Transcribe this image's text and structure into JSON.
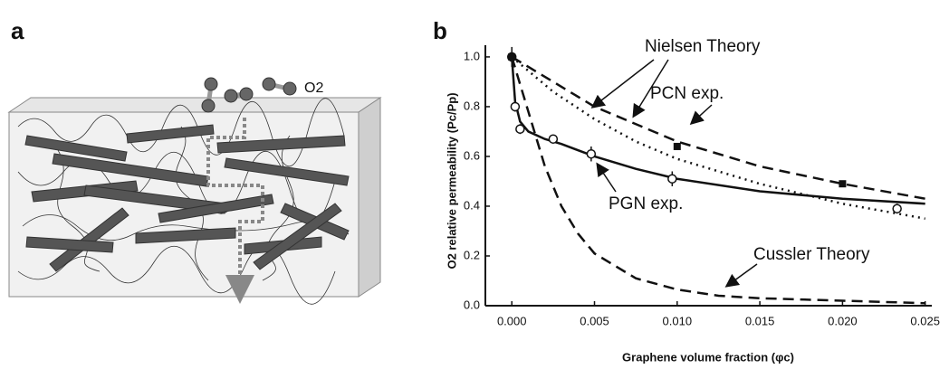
{
  "panels": {
    "a": {
      "label": "a",
      "molecule_label": "O2"
    },
    "b": {
      "label": "b"
    }
  },
  "chart_data": {
    "type": "scatter-line",
    "xlabel": "Graphene volume fraction (φc)",
    "ylabel": "O2 relative permeability (Pc/Pp)",
    "xlim": [
      -0.0016,
      0.0254
    ],
    "ylim": [
      0,
      1.047
    ],
    "xticks": [
      {
        "value": 0,
        "label": "0.000"
      },
      {
        "value": 0.005,
        "label": "0.005"
      },
      {
        "value": 0.01,
        "label": "0.010"
      },
      {
        "value": 0.015,
        "label": "0.015"
      },
      {
        "value": 0.02,
        "label": "0.020"
      },
      {
        "value": 0.025,
        "label": "0.025"
      }
    ],
    "yticks": [
      {
        "value": 0,
        "label": "0.0"
      },
      {
        "value": 0.2,
        "label": "0.2"
      },
      {
        "value": 0.4,
        "label": "0.4"
      },
      {
        "value": 0.6,
        "label": "0.6"
      },
      {
        "value": 0.8,
        "label": "0.8"
      },
      {
        "value": 1,
        "label": "1.0"
      }
    ],
    "annotations": [
      "Nielsen Theory",
      "Cussler Theory"
    ],
    "series": [
      {
        "style": "solid",
        "color": "#111111",
        "x": [
          0,
          0.0002,
          0.0005,
          0.001,
          0.002,
          0.003,
          0.005,
          0.0075,
          0.01,
          0.015,
          0.02,
          0.025
        ],
        "values": [
          1.0,
          0.82,
          0.74,
          0.7,
          0.67,
          0.65,
          0.6,
          0.55,
          0.51,
          0.46,
          0.43,
          0.41
        ]
      },
      {
        "style": "dotted",
        "color": "#111111",
        "x": [
          0,
          0.0025,
          0.005,
          0.0075,
          0.01,
          0.015,
          0.02,
          0.025
        ],
        "values": [
          1.0,
          0.86,
          0.75,
          0.66,
          0.59,
          0.49,
          0.41,
          0.35
        ]
      },
      {
        "style": "dashed",
        "color": "#111111",
        "x": [
          0,
          0.005,
          0.01,
          0.015,
          0.02,
          0.025
        ],
        "values": [
          1.0,
          0.8,
          0.66,
          0.56,
          0.49,
          0.43
        ]
      },
      {
        "style": "dashed",
        "color": "#111111",
        "x": [
          0,
          0.001,
          0.002,
          0.003,
          0.004,
          0.005,
          0.0075,
          0.01,
          0.0125,
          0.015,
          0.02,
          0.025
        ],
        "values": [
          1.0,
          0.78,
          0.56,
          0.4,
          0.29,
          0.21,
          0.11,
          0.065,
          0.04,
          0.03,
          0.02,
          0.01
        ]
      },
      {
        "name": "PGN exp.",
        "style": "open-circle",
        "color": "#111111",
        "x": [
          0,
          0.0002,
          0.0005,
          0.0025,
          0.0048,
          0.0097,
          0.0233
        ],
        "values": [
          1.0,
          0.8,
          0.71,
          0.67,
          0.61,
          0.51,
          0.39
        ],
        "errors": [
          0.04,
          0.02,
          0.02,
          0.01,
          0.03,
          0.03,
          0.02
        ]
      },
      {
        "name": "PCN exp.",
        "style": "filled-square",
        "color": "#111111",
        "x": [
          0,
          0.01,
          0.02
        ],
        "values": [
          1.0,
          0.64,
          0.49
        ]
      }
    ]
  }
}
